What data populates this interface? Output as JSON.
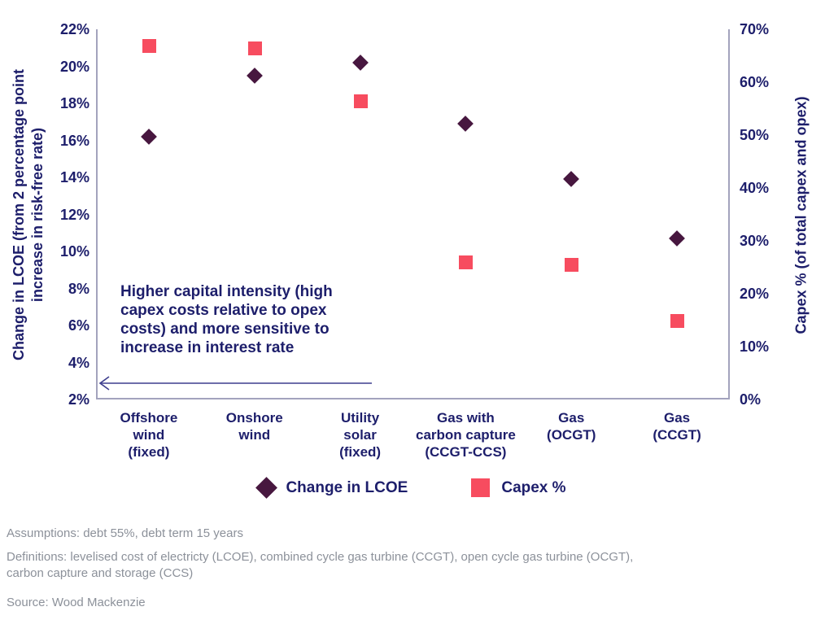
{
  "colors": {
    "navy_text": "#1d1e6b",
    "lcoe_diamond": "#47173f",
    "capex_square": "#f74c5f",
    "axis_line": "#a3a3bd",
    "footer_gray": "#8c919a",
    "arrow": "#3e3e8e"
  },
  "chart_data": {
    "type": "scatter",
    "categories": [
      [
        "Offshore",
        "wind",
        "(fixed)"
      ],
      [
        "Onshore",
        "wind"
      ],
      [
        "Utility",
        "solar",
        "(fixed)"
      ],
      [
        "Gas with",
        "carbon capture",
        "(CCGT-CCS)"
      ],
      [
        "Gas",
        "(OCGT)"
      ],
      [
        "Gas",
        "(CCGT)"
      ]
    ],
    "series": [
      {
        "name": "Change in LCOE",
        "marker": "diamond",
        "color": "#47173f",
        "axis": "left",
        "values": [
          16.2,
          19.5,
          20.2,
          16.9,
          13.9,
          10.7
        ]
      },
      {
        "name": "Capex %",
        "marker": "square",
        "color": "#f74c5f",
        "axis": "right",
        "values": [
          67,
          66.5,
          56.5,
          26,
          25.5,
          15
        ]
      }
    ],
    "left_axis": {
      "label": "Change in LCOE (from 2 percentage point increase in risk-free rate)",
      "min": 2,
      "max": 22,
      "step": 2,
      "suffix": "%"
    },
    "right_axis": {
      "label": "Capex % (of total capex and opex)",
      "min": 0,
      "max": 70,
      "step": 10,
      "suffix": "%"
    },
    "annotation": {
      "text": "Higher capital intensity (high capex costs relative to opex costs) and more sensitive to increase in interest rate",
      "arrow_direction": "left"
    },
    "grid": false,
    "legend_position": "bottom"
  },
  "footer": {
    "assumptions": "Assumptions: debt 55%, debt term 15 years",
    "definitions": "Definitions: levelised cost of electricty (LCOE), combined cycle gas turbine (CCGT), open cycle gas turbine (OCGT), carbon capture and storage (CCS)",
    "source": "Source: Wood Mackenzie"
  }
}
